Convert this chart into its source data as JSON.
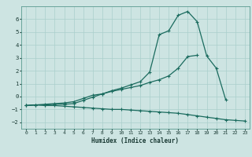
{
  "xlabel": "Humidex (Indice chaleur)",
  "background_color": "#cde4e2",
  "grid_color": "#aacfcc",
  "line_color": "#1a6b5e",
  "x_values": [
    0,
    1,
    2,
    3,
    4,
    5,
    6,
    7,
    8,
    9,
    10,
    11,
    12,
    13,
    14,
    15,
    16,
    17,
    18,
    19,
    20,
    21,
    22,
    23
  ],
  "line1": [
    -0.7,
    -0.65,
    -0.65,
    -0.6,
    -0.6,
    -0.55,
    -0.3,
    -0.05,
    0.2,
    0.45,
    0.65,
    0.9,
    1.15,
    1.9,
    4.8,
    5.1,
    6.3,
    6.6,
    5.8,
    3.15,
    2.2,
    -0.25,
    null,
    null
  ],
  "line2": [
    -0.7,
    -0.65,
    -0.6,
    -0.55,
    -0.5,
    -0.4,
    -0.15,
    0.1,
    0.2,
    0.4,
    0.55,
    0.7,
    0.85,
    1.1,
    1.3,
    1.6,
    2.2,
    3.1,
    3.2,
    null,
    null,
    null,
    null,
    null
  ],
  "line3": [
    -0.7,
    -0.65,
    -0.7,
    -0.7,
    -0.75,
    -0.8,
    -0.85,
    -0.9,
    -0.95,
    -1.0,
    -1.0,
    -1.05,
    -1.1,
    -1.15,
    -1.2,
    -1.25,
    -1.3,
    -1.4,
    -1.5,
    -1.6,
    -1.7,
    -1.8,
    -1.85,
    -1.9
  ],
  "xlim": [
    -0.5,
    23.5
  ],
  "ylim": [
    -2.5,
    7.0
  ],
  "yticks": [
    -2,
    -1,
    0,
    1,
    2,
    3,
    4,
    5,
    6
  ],
  "xticks": [
    0,
    1,
    2,
    3,
    4,
    5,
    6,
    7,
    8,
    9,
    10,
    11,
    12,
    13,
    14,
    15,
    16,
    17,
    18,
    19,
    20,
    21,
    22,
    23
  ]
}
